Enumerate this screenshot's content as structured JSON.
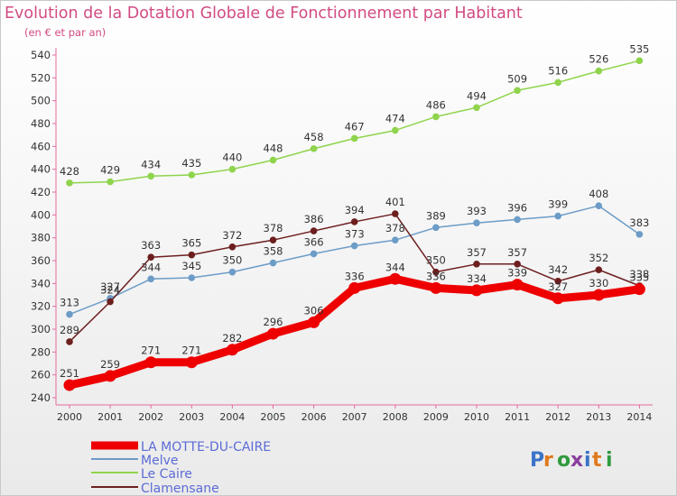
{
  "chart_data": {
    "type": "line",
    "title": "Evolution de la Dotation Globale de Fonctionnement par Habitant",
    "subtitle": "(en € et par an)",
    "xlabel": "",
    "ylabel": "",
    "x": [
      "2000",
      "2001",
      "2002",
      "2003",
      "2004",
      "2005",
      "2006",
      "2007",
      "2008",
      "2009",
      "2010",
      "2011",
      "2012",
      "2013",
      "2014"
    ],
    "ylim": [
      240,
      540
    ],
    "yticks": [
      240,
      260,
      280,
      300,
      320,
      340,
      360,
      380,
      400,
      420,
      440,
      460,
      480,
      500,
      520,
      540
    ],
    "grid": false,
    "legend_position": "bottom-left",
    "series": [
      {
        "name": "LA MOTTE-DU-CAIRE",
        "color": "#ee0000",
        "emphasis": true,
        "values": [
          251,
          259,
          271,
          271,
          282,
          296,
          306,
          336,
          344,
          336,
          334,
          339,
          327,
          330,
          335
        ]
      },
      {
        "name": "Melve",
        "color": "#6c9cc7",
        "values": [
          313,
          327,
          344,
          345,
          350,
          358,
          366,
          373,
          378,
          389,
          393,
          396,
          399,
          408,
          383
        ]
      },
      {
        "name": "Le Caire",
        "color": "#8fd44c",
        "values": [
          428,
          429,
          434,
          435,
          440,
          448,
          458,
          467,
          474,
          486,
          494,
          509,
          516,
          526,
          535
        ]
      },
      {
        "name": "Clamensane",
        "color": "#6d1f1f",
        "values": [
          289,
          324,
          363,
          365,
          372,
          378,
          386,
          394,
          401,
          350,
          357,
          357,
          342,
          352,
          338
        ]
      }
    ]
  },
  "logo": {
    "text": "Proxiti",
    "colors": [
      "#3a73c7",
      "#e07a1c",
      "#2f9a3e",
      "#8a3fa0"
    ]
  }
}
